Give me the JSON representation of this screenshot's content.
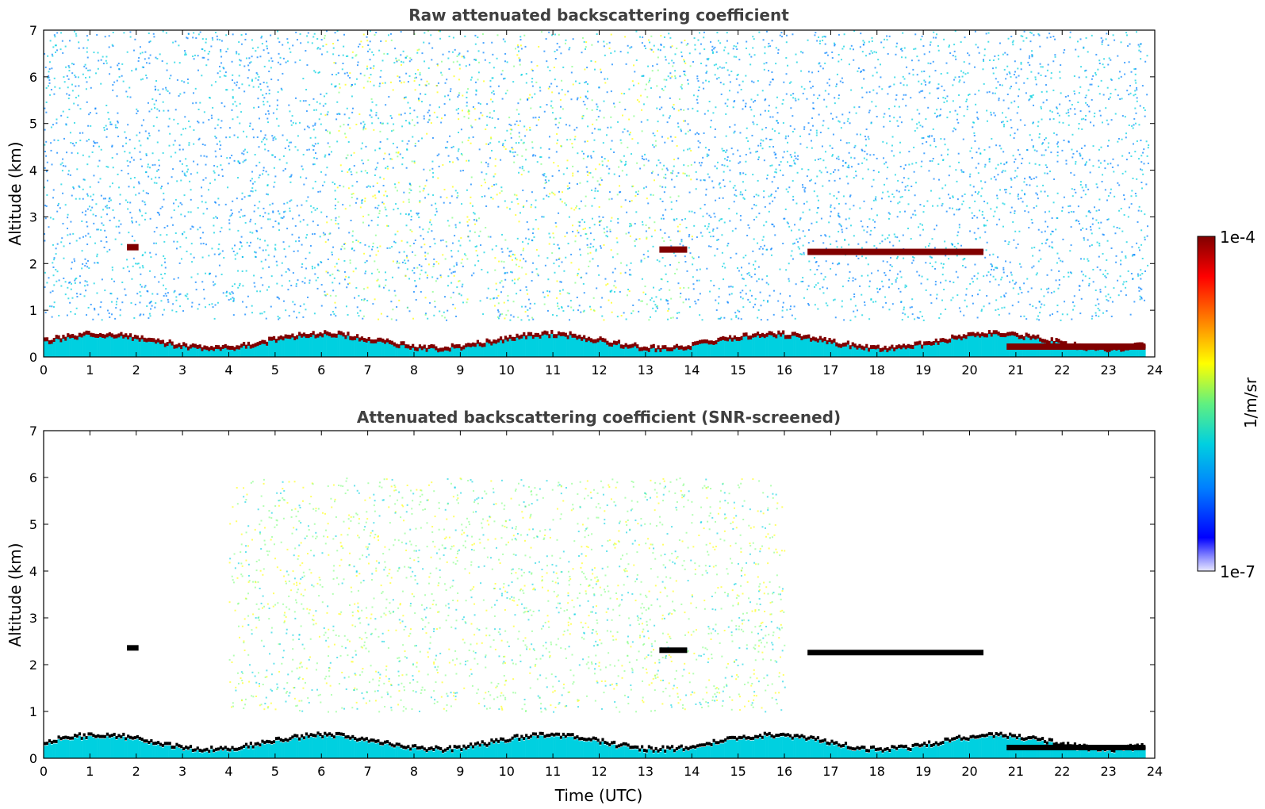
{
  "chart_data": [
    {
      "type": "heatmap",
      "title": "Raw attenuated backscattering coefficient",
      "xlabel": "",
      "ylabel": "Altitude (km)",
      "xlim": [
        0,
        24
      ],
      "ylim": [
        0,
        7
      ],
      "x_ticks": [
        "0",
        "1",
        "2",
        "3",
        "4",
        "5",
        "6",
        "7",
        "8",
        "9",
        "10",
        "11",
        "12",
        "13",
        "14",
        "15",
        "16",
        "17",
        "18",
        "19",
        "20",
        "21",
        "22",
        "23",
        "24"
      ],
      "y_ticks": [
        "0",
        "1",
        "2",
        "3",
        "4",
        "5",
        "6",
        "7"
      ],
      "cloud_layers": [
        {
          "start": 16.5,
          "end": 20.3,
          "altitude": 2.25
        },
        {
          "start": 13.3,
          "end": 13.9,
          "altitude": 2.3
        },
        {
          "start": 1.8,
          "end": 2.05,
          "altitude": 2.35
        },
        {
          "start": 20.8,
          "end": 23.8,
          "altitude": 0.22
        }
      ]
    },
    {
      "type": "heatmap",
      "title": "Attenuated backscattering coefficient (SNR-screened)",
      "xlabel": "Time (UTC)",
      "ylabel": "Altitude (km)",
      "xlim": [
        0,
        24
      ],
      "ylim": [
        0,
        7
      ],
      "x_ticks": [
        "0",
        "1",
        "2",
        "3",
        "4",
        "5",
        "6",
        "7",
        "8",
        "9",
        "10",
        "11",
        "12",
        "13",
        "14",
        "15",
        "16",
        "17",
        "18",
        "19",
        "20",
        "21",
        "22",
        "23",
        "24"
      ],
      "y_ticks": [
        "0",
        "1",
        "2",
        "3",
        "4",
        "5",
        "6",
        "7"
      ]
    }
  ],
  "colorbar": {
    "max_label": "1e-4",
    "min_label": "1e-7",
    "unit_label": "1/m/sr",
    "colors": [
      "#e8e8ff",
      "#0000ff",
      "#0080ff",
      "#00d0e0",
      "#80ff80",
      "#ffff00",
      "#ff8000",
      "#ff0000",
      "#800000"
    ]
  }
}
